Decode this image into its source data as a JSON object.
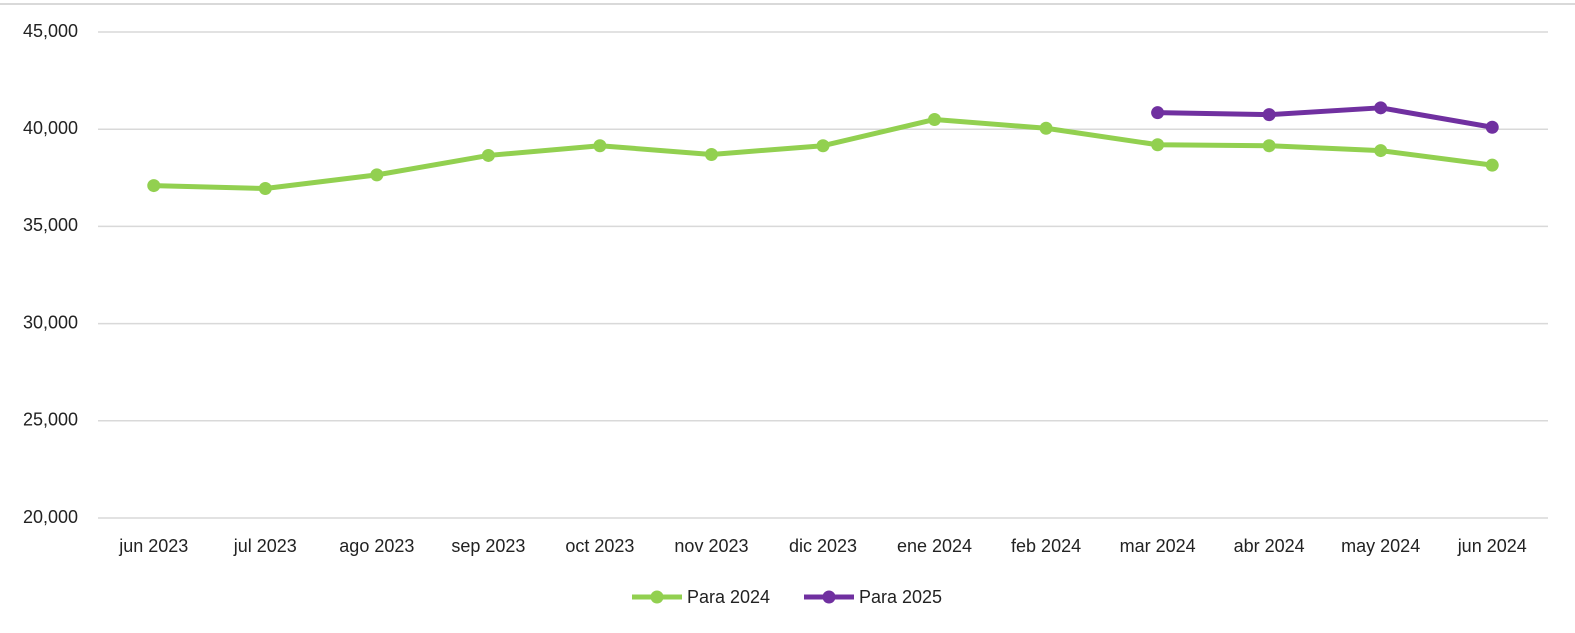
{
  "chart_data": {
    "type": "line",
    "categories": [
      "jun 2023",
      "jul 2023",
      "ago 2023",
      "sep 2023",
      "oct 2023",
      "nov 2023",
      "dic 2023",
      "ene 2024",
      "feb 2024",
      "mar 2024",
      "abr 2024",
      "may 2024",
      "jun 2024"
    ],
    "series": [
      {
        "name": "Para 2024",
        "color": "#92d050",
        "values": [
          37100,
          36950,
          37650,
          38650,
          39150,
          38700,
          39150,
          40500,
          40050,
          39200,
          39150,
          38900,
          38150
        ]
      },
      {
        "name": "Para 2025",
        "color": "#7030a0",
        "values": [
          null,
          null,
          null,
          null,
          null,
          null,
          null,
          null,
          null,
          40850,
          40750,
          41100,
          40100
        ]
      }
    ],
    "ylim": [
      20000,
      45000
    ],
    "yticks": [
      {
        "value": 20000,
        "label": "20,000"
      },
      {
        "value": 25000,
        "label": "25,000"
      },
      {
        "value": 30000,
        "label": "30,000"
      },
      {
        "value": 35000,
        "label": "35,000"
      },
      {
        "value": 40000,
        "label": "40,000"
      },
      {
        "value": 45000,
        "label": "45,000"
      }
    ],
    "grid": true,
    "legend": "bottom"
  }
}
